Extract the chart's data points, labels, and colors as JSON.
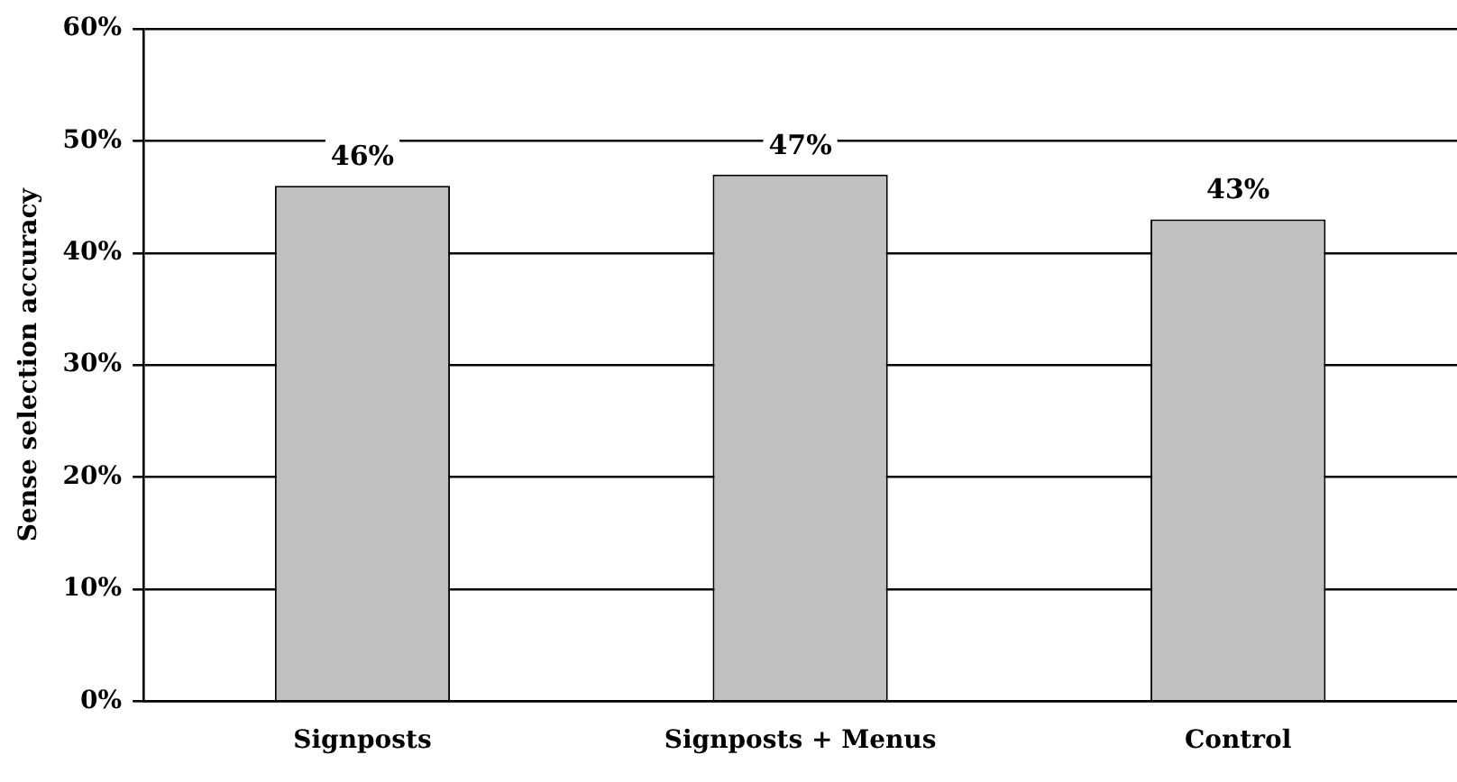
{
  "chart_data": {
    "type": "bar",
    "ylabel": "Sense selection accuracy",
    "categories": [
      "Signposts",
      "Signposts + Menus",
      "Control"
    ],
    "values": [
      46,
      47,
      43
    ],
    "value_labels": [
      "46%",
      "47%",
      "43%"
    ],
    "color": "#c0c0c0",
    "ylim": [
      0,
      60
    ],
    "yticks": [
      {
        "value": 0,
        "label": "0%"
      },
      {
        "value": 10,
        "label": "10%"
      },
      {
        "value": 20,
        "label": "20%"
      },
      {
        "value": 30,
        "label": "30%"
      },
      {
        "value": 40,
        "label": "40%"
      },
      {
        "value": 50,
        "label": "50%"
      },
      {
        "value": 60,
        "label": "60%"
      }
    ],
    "grid": "y",
    "legend": false
  }
}
